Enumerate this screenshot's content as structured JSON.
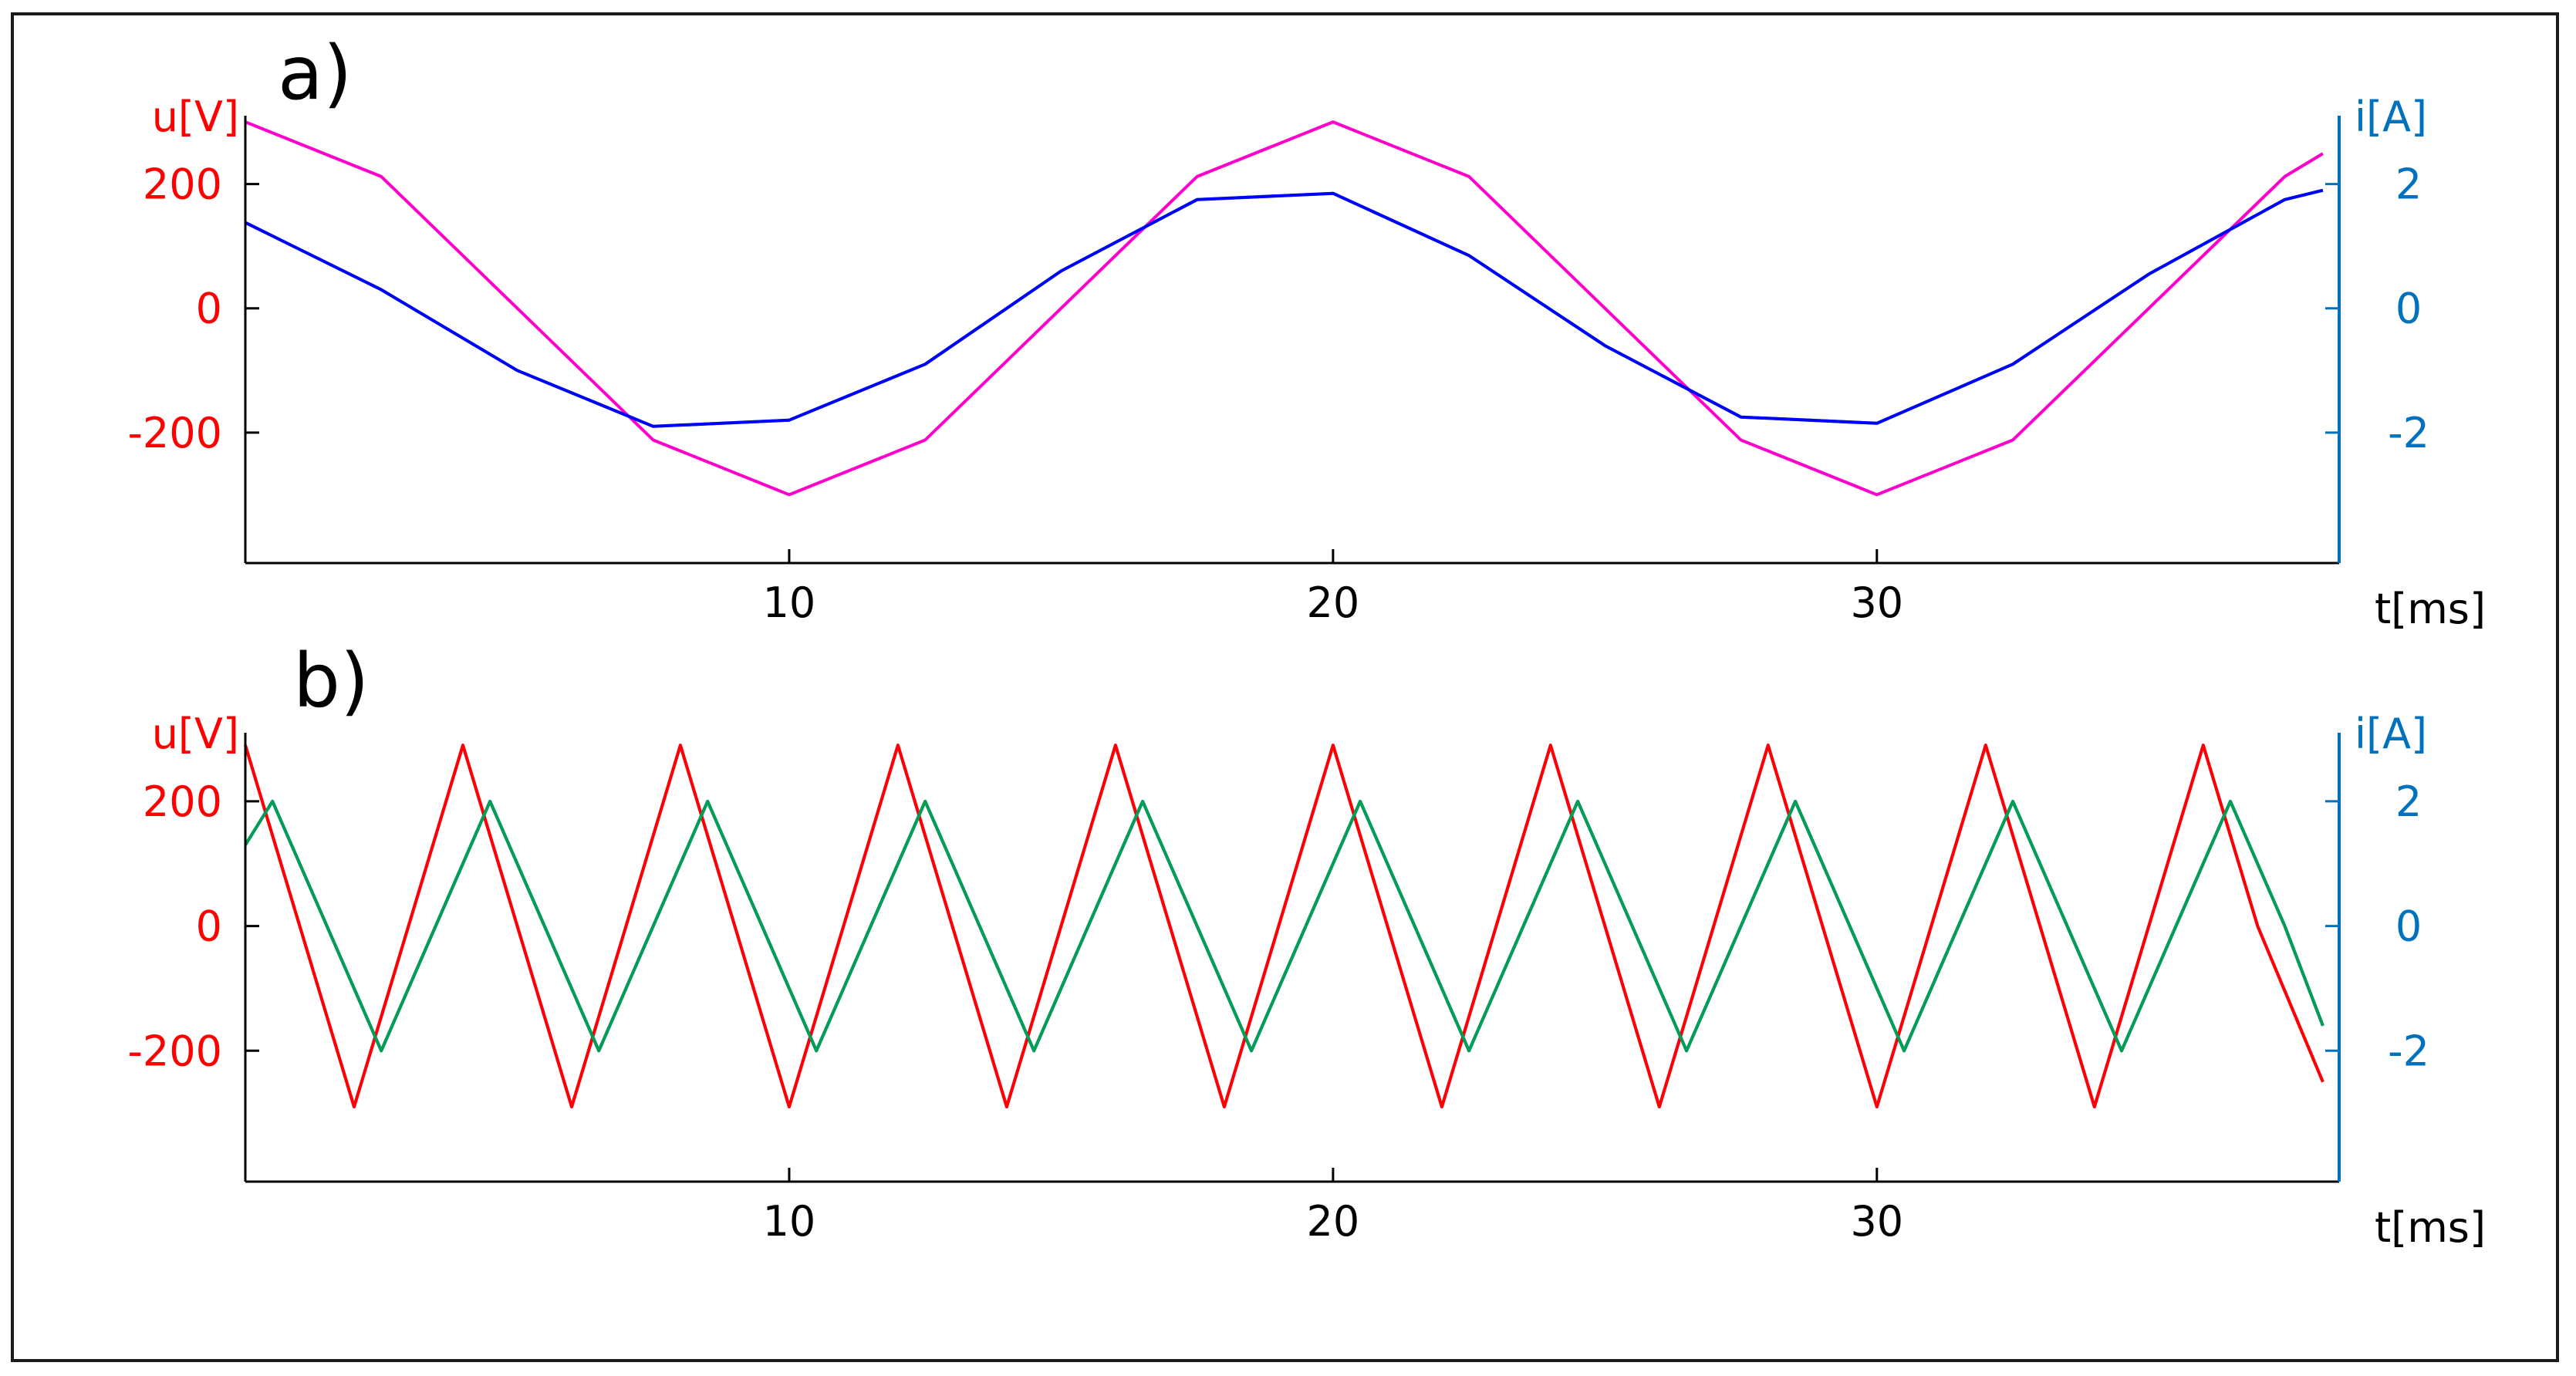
{
  "chart_data": [
    {
      "type": "line",
      "panel_label": "a)",
      "xlabel": "t[ms]",
      "ylabel_left": "u[V]",
      "ylabel_right": "i[A]",
      "xlim": [
        0,
        38.5
      ],
      "ylim_left": [
        -410,
        310
      ],
      "ylim_right": [
        -4.1,
        3.1
      ],
      "x_ticks": [
        10,
        20,
        30
      ],
      "y_ticks_left": [
        200,
        0,
        -200
      ],
      "y_ticks_right": [
        2,
        0,
        -2
      ],
      "colors": {
        "left_axis": "#ff0000",
        "right_axis": "#0072bd"
      },
      "series": [
        {
          "axis": "left",
          "color": "#ff00cc",
          "x": [
            0,
            2.5,
            5,
            7.5,
            10,
            12.5,
            15,
            17.5,
            20,
            22.5,
            25,
            27.5,
            30,
            32.5,
            35,
            37.5,
            38.2
          ],
          "y": [
            300,
            212,
            0,
            -212,
            -300,
            -212,
            0,
            212,
            300,
            212,
            0,
            -212,
            -300,
            -212,
            0,
            212,
            249
          ]
        },
        {
          "axis": "right",
          "color": "#00c040",
          "x": [
            0,
            2.5,
            5,
            7.5,
            10,
            12.5,
            15,
            17.5,
            20,
            22.5,
            25,
            27.5,
            30,
            32.5,
            35,
            37.5,
            38.2
          ],
          "y": [
            1.38,
            0.3,
            -1.0,
            -1.9,
            -1.8,
            -0.9,
            0.6,
            1.75,
            1.85,
            0.85,
            -0.6,
            -1.75,
            -1.85,
            -0.9,
            0.55,
            1.75,
            1.9
          ]
        },
        {
          "axis": "right",
          "color": "#0000ff",
          "x": [
            0,
            2.5,
            5,
            7.5,
            10,
            12.5,
            15,
            17.5,
            20,
            22.5,
            25,
            27.5,
            30,
            32.5,
            35,
            37.5,
            38.2
          ],
          "y": [
            1.38,
            0.3,
            -1.0,
            -1.9,
            -1.8,
            -0.9,
            0.6,
            1.75,
            1.85,
            0.85,
            -0.6,
            -1.75,
            -1.85,
            -0.9,
            0.55,
            1.75,
            1.9
          ]
        }
      ]
    },
    {
      "type": "line",
      "panel_label": "b)",
      "xlabel": "t[ms]",
      "ylabel_left": "u[V]",
      "ylabel_right": "i[A]",
      "xlim": [
        0,
        38.5
      ],
      "ylim_left": [
        -410,
        310
      ],
      "ylim_right": [
        -4.1,
        3.1
      ],
      "x_ticks": [
        10,
        20,
        30
      ],
      "y_ticks_left": [
        200,
        0,
        -200
      ],
      "y_ticks_right": [
        2,
        0,
        -2
      ],
      "colors": {
        "left_axis": "#ff0000",
        "right_axis": "#0072bd"
      },
      "series": [
        {
          "axis": "left",
          "color": "#ff00cc",
          "x": [
            0,
            1,
            2,
            3,
            4,
            5,
            6,
            7,
            8,
            9,
            10,
            11,
            12,
            13,
            14,
            15,
            16,
            17,
            18,
            19,
            20,
            21,
            22,
            23,
            24,
            25,
            26,
            27,
            28,
            29,
            30,
            31,
            32,
            33,
            34,
            35,
            36,
            37,
            38.2
          ],
          "y": [
            290,
            0,
            -290,
            0,
            290,
            0,
            -290,
            0,
            290,
            0,
            -290,
            0,
            290,
            0,
            -290,
            0,
            290,
            0,
            -290,
            0,
            290,
            0,
            -290,
            0,
            290,
            0,
            -290,
            0,
            290,
            0,
            -290,
            0,
            290,
            0,
            -290,
            0,
            290,
            0,
            -250
          ]
        },
        {
          "axis": "left",
          "color": "#ff0000",
          "x": [
            0,
            1,
            2,
            3,
            4,
            5,
            6,
            7,
            8,
            9,
            10,
            11,
            12,
            13,
            14,
            15,
            16,
            17,
            18,
            19,
            20,
            21,
            22,
            23,
            24,
            25,
            26,
            27,
            28,
            29,
            30,
            31,
            32,
            33,
            34,
            35,
            36,
            37,
            38.2
          ],
          "y": [
            290,
            0,
            -290,
            0,
            290,
            0,
            -290,
            0,
            290,
            0,
            -290,
            0,
            290,
            0,
            -290,
            0,
            290,
            0,
            -290,
            0,
            290,
            0,
            -290,
            0,
            290,
            0,
            -290,
            0,
            290,
            0,
            -290,
            0,
            290,
            0,
            -290,
            0,
            290,
            0,
            -250
          ]
        },
        {
          "axis": "right",
          "color": "#0000ff",
          "x": [
            0,
            0.5,
            1.5,
            2.5,
            3.5,
            4.5,
            5.5,
            6.5,
            7.5,
            8.5,
            9.5,
            10.5,
            11.5,
            12.5,
            13.5,
            14.5,
            15.5,
            16.5,
            17.5,
            18.5,
            19.5,
            20.5,
            21.5,
            22.5,
            23.5,
            24.5,
            25.5,
            26.5,
            27.5,
            28.5,
            29.5,
            30.5,
            31.5,
            32.5,
            33.5,
            34.5,
            35.5,
            36.5,
            37.5,
            38.2
          ],
          "y": [
            1.3,
            2.0,
            0,
            -2.0,
            0,
            2.0,
            0,
            -2.0,
            0,
            2.0,
            0,
            -2.0,
            0,
            2.0,
            0,
            -2.0,
            0,
            2.0,
            0,
            -2.0,
            0,
            2.0,
            0,
            -2.0,
            0,
            2.0,
            0,
            -2.0,
            0,
            2.0,
            0,
            -2.0,
            0,
            2.0,
            0,
            -2.0,
            0,
            2.0,
            0,
            -1.6
          ]
        },
        {
          "axis": "right",
          "color": "#00a050",
          "x": [
            0,
            0.5,
            1.5,
            2.5,
            3.5,
            4.5,
            5.5,
            6.5,
            7.5,
            8.5,
            9.5,
            10.5,
            11.5,
            12.5,
            13.5,
            14.5,
            15.5,
            16.5,
            17.5,
            18.5,
            19.5,
            20.5,
            21.5,
            22.5,
            23.5,
            24.5,
            25.5,
            26.5,
            27.5,
            28.5,
            29.5,
            30.5,
            31.5,
            32.5,
            33.5,
            34.5,
            35.5,
            36.5,
            37.5,
            38.2
          ],
          "y": [
            1.3,
            2.0,
            0,
            -2.0,
            0,
            2.0,
            0,
            -2.0,
            0,
            2.0,
            0,
            -2.0,
            0,
            2.0,
            0,
            -2.0,
            0,
            2.0,
            0,
            -2.0,
            0,
            2.0,
            0,
            -2.0,
            0,
            2.0,
            0,
            -2.0,
            0,
            2.0,
            0,
            -2.0,
            0,
            2.0,
            0,
            -2.0,
            0,
            2.0,
            0,
            -1.6
          ]
        }
      ]
    }
  ]
}
